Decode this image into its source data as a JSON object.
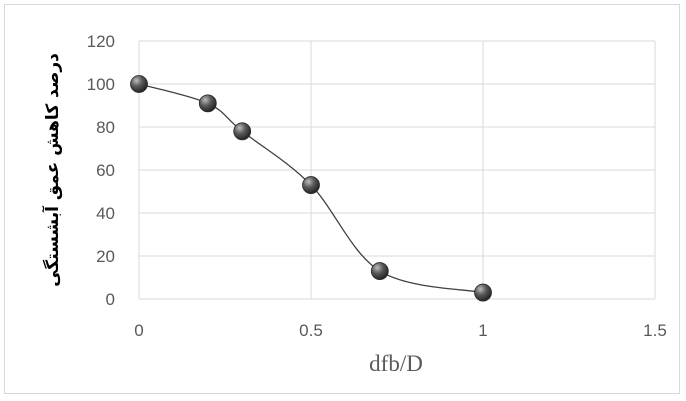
{
  "chart_data": {
    "type": "scatter",
    "mode": "markers+smooth-line",
    "title": "",
    "xlabel": "dfb/D",
    "ylabel": "درصد کاهش عمق آبشستگی",
    "xlim": [
      0,
      1.5
    ],
    "ylim": [
      0,
      120
    ],
    "x_ticks": [
      0,
      0.5,
      1,
      1.5
    ],
    "x_tick_labels": [
      "0",
      "0.5",
      "1",
      "1.5"
    ],
    "y_ticks": [
      0,
      20,
      40,
      60,
      80,
      100,
      120
    ],
    "y_tick_labels": [
      "0",
      "20",
      "40",
      "60",
      "80",
      "100",
      "120"
    ],
    "grid": true,
    "legend": "none",
    "series": [
      {
        "x": [
          0,
          0.2,
          0.3,
          0.5,
          0.7,
          1.0
        ],
        "y": [
          100,
          91,
          78,
          53,
          13,
          3
        ],
        "color": "#404040",
        "marker_color": "#4d4d4d"
      }
    ]
  }
}
